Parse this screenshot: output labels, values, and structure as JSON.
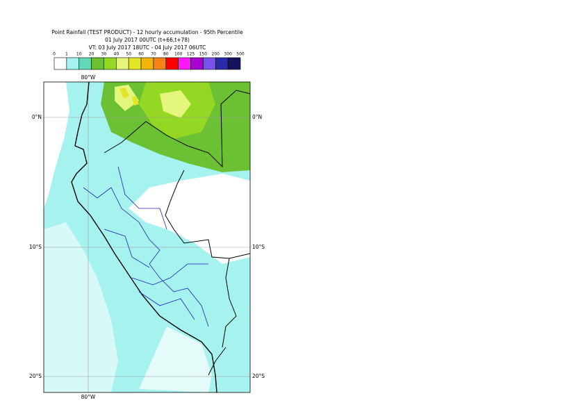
{
  "header": {
    "title": "Point Rainfall (TEST PRODUCT) - 12 hourly accumulation - 95th Percentile",
    "base_time": "01 July 2017 00UTC (t+66,t+78)",
    "valid_time": "VT: 03 July 2017 18UTC - 04 July 2017 06UTC"
  },
  "legend": {
    "labels": [
      0,
      1,
      10,
      20,
      30,
      40,
      50,
      60,
      70,
      80,
      100,
      125,
      150,
      200,
      300,
      500
    ],
    "colors": [
      "#ffffff",
      "#a6f2ee",
      "#5fd9b6",
      "#6cc034",
      "#94d824",
      "#e4f67c",
      "#e4e428",
      "#f2b60a",
      "#f58414",
      "#ff0000",
      "#ff18ff",
      "#a800d2",
      "#7a52f0",
      "#2a2aaa",
      "#14145c"
    ]
  },
  "map": {
    "lon_labels": [
      "80°W",
      "80°W"
    ],
    "lat_labels": [
      "0°N",
      "10°S",
      "20°S",
      "0°N",
      "10°S",
      "20°S"
    ]
  }
}
